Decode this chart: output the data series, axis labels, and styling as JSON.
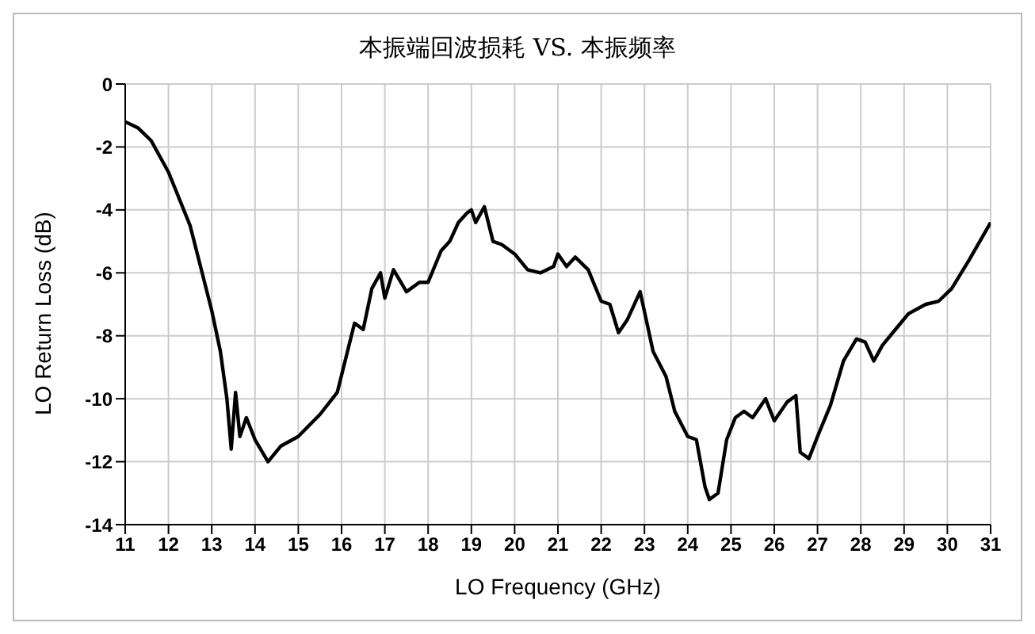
{
  "chart_data": {
    "type": "line",
    "title": "本振端回波损耗 VS. 本振频率",
    "xlabel": "LO Frequency (GHz)",
    "ylabel": "LO Return Loss (dB)",
    "x": [
      11.0,
      11.3,
      11.6,
      12.0,
      12.5,
      13.0,
      13.2,
      13.35,
      13.45,
      13.55,
      13.65,
      13.8,
      14.0,
      14.3,
      14.6,
      15.0,
      15.5,
      15.9,
      16.1,
      16.3,
      16.5,
      16.7,
      16.9,
      17.0,
      17.2,
      17.5,
      17.8,
      18.0,
      18.3,
      18.5,
      18.7,
      18.9,
      19.0,
      19.1,
      19.3,
      19.5,
      19.7,
      20.0,
      20.3,
      20.6,
      20.9,
      21.0,
      21.2,
      21.4,
      21.7,
      22.0,
      22.2,
      22.4,
      22.6,
      22.9,
      23.2,
      23.5,
      23.7,
      24.0,
      24.2,
      24.4,
      24.5,
      24.7,
      24.9,
      25.1,
      25.3,
      25.5,
      25.8,
      26.0,
      26.3,
      26.5,
      26.6,
      26.8,
      27.0,
      27.3,
      27.6,
      27.9,
      28.1,
      28.3,
      28.5,
      28.8,
      29.1,
      29.5,
      29.8,
      30.1,
      30.5,
      31.0
    ],
    "series": [
      {
        "color": "#000000",
        "values": [
          -1.2,
          -1.4,
          -1.8,
          -2.8,
          -4.5,
          -7.2,
          -8.5,
          -10.0,
          -11.6,
          -9.8,
          -11.2,
          -10.6,
          -11.3,
          -12.0,
          -11.5,
          -11.2,
          -10.5,
          -9.8,
          -8.7,
          -7.6,
          -7.8,
          -6.5,
          -6.0,
          -6.8,
          -5.9,
          -6.6,
          -6.3,
          -6.3,
          -5.3,
          -5.0,
          -4.4,
          -4.1,
          -4.0,
          -4.4,
          -3.9,
          -5.0,
          -5.1,
          -5.4,
          -5.9,
          -6.0,
          -5.8,
          -5.4,
          -5.8,
          -5.5,
          -5.9,
          -6.9,
          -7.0,
          -7.9,
          -7.5,
          -6.6,
          -8.5,
          -9.3,
          -10.4,
          -11.2,
          -11.3,
          -12.8,
          -13.2,
          -13.0,
          -11.3,
          -10.6,
          -10.4,
          -10.6,
          -10.0,
          -10.7,
          -10.1,
          -9.9,
          -11.7,
          -11.9,
          -11.2,
          -10.2,
          -8.8,
          -8.1,
          -8.2,
          -8.8,
          -8.3,
          -7.8,
          -7.3,
          -7.0,
          -6.9,
          -6.5,
          -5.6,
          -4.4
        ]
      }
    ],
    "xlim": [
      11,
      31
    ],
    "xticks": [
      11,
      12,
      13,
      14,
      15,
      16,
      17,
      18,
      19,
      20,
      21,
      22,
      23,
      24,
      25,
      26,
      27,
      28,
      29,
      30,
      31
    ],
    "ylim": [
      -14,
      0
    ],
    "yticks": [
      -14,
      -12,
      -10,
      -8,
      -6,
      -4,
      -2,
      0
    ],
    "grid": true,
    "legend": false,
    "marker": "none",
    "line_style": "solid"
  }
}
